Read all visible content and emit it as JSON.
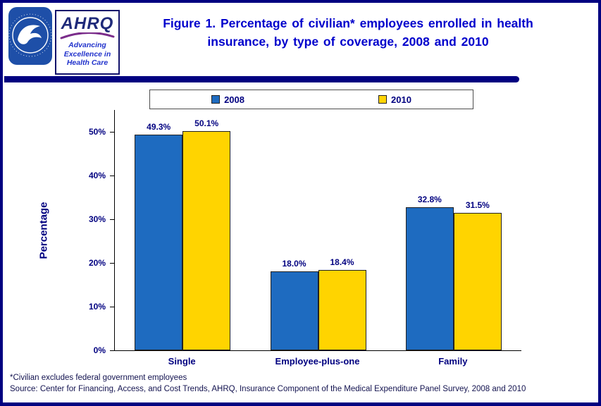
{
  "header": {
    "title": "Figure 1. Percentage of civilian* employees enrolled in health insurance, by type of coverage, 2008 and 2010",
    "ahrq": {
      "name": "AHRQ",
      "tagline": [
        "Advancing",
        "Excellence in",
        "Health Care"
      ]
    }
  },
  "chart_data": {
    "type": "bar",
    "title": "Figure 1. Percentage of civilian* employees enrolled in health insurance, by type of coverage, 2008 and 2010",
    "categories": [
      "Single",
      "Employee-plus-one",
      "Family"
    ],
    "series": [
      {
        "name": "2008",
        "color": "#1e6bc0",
        "values": [
          49.3,
          18.0,
          32.8
        ]
      },
      {
        "name": "2010",
        "color": "#ffd400",
        "values": [
          50.1,
          18.4,
          31.5
        ]
      }
    ],
    "value_labels": [
      [
        "49.3%",
        "18.0%",
        "32.8%"
      ],
      [
        "50.1%",
        "18.4%",
        "31.5%"
      ]
    ],
    "xlabel": "",
    "ylabel": "Percentage",
    "ylim": [
      0,
      55
    ],
    "yticks": [
      "0%",
      "10%",
      "20%",
      "30%",
      "40%",
      "50%"
    ],
    "grid": false,
    "legend_position": "top"
  },
  "footnotes": {
    "note": "*Civilian excludes federal government employees",
    "source": "Source: Center for Financing, Access, and Cost Trends, AHRQ, Insurance Component of the Medical Expenditure Panel Survey, 2008 and 2010"
  },
  "colors": {
    "page_border": "#000080",
    "title_text": "#0000cc",
    "axis_label_text": "#000080",
    "divider": "#000080",
    "bar_2008": "#1e6bc0",
    "bar_2010": "#ffd400"
  }
}
